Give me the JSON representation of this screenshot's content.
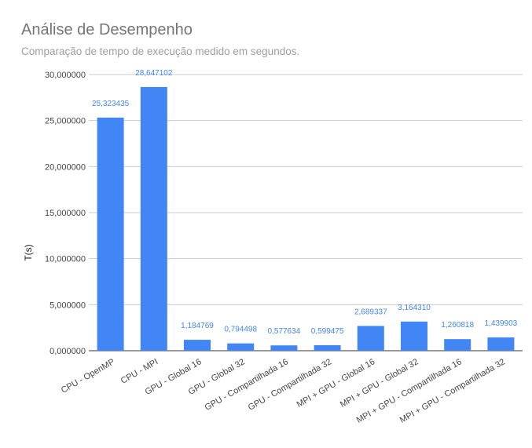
{
  "chart_data": {
    "type": "bar",
    "title": "Análise de Desempenho",
    "subtitle": "Comparação de tempo de execução medido em segundos.",
    "xlabel": "",
    "ylabel": "T(s)",
    "ylim": [
      0,
      30
    ],
    "yticks": [
      0,
      5,
      10,
      15,
      20,
      25,
      30
    ],
    "ytick_labels": [
      "0,000000",
      "5,000000",
      "10,000000",
      "15,000000",
      "20,000000",
      "25,000000",
      "30,000000"
    ],
    "grid": true,
    "legend": "none",
    "bar_color": "#4285f4",
    "data_label_color": "#4285f4",
    "categories": [
      "CPU - OpenMP",
      "CPU - MPI",
      "GPU - Global 16",
      "GPU - Global 32",
      "GPU - Compartilhada 16",
      "GPU - Compartilhada 32",
      "MPI + GPU - Global 16",
      "MPI + GPU - Global 32",
      "MPI + GPU - Compartilhada 16",
      "MPI + GPU - Compartilhada 32"
    ],
    "values": [
      25.323435,
      28.647102,
      1.184769,
      0.794498,
      0.577634,
      0.599475,
      2.689337,
      3.16431,
      1.260818,
      1.439903
    ],
    "value_labels": [
      "25,323435",
      "28,647102",
      "1,184769",
      "0,794498",
      "0,577634",
      "0,599475",
      "2,689337",
      "3,164310",
      "1,260818",
      "1,439903"
    ]
  }
}
